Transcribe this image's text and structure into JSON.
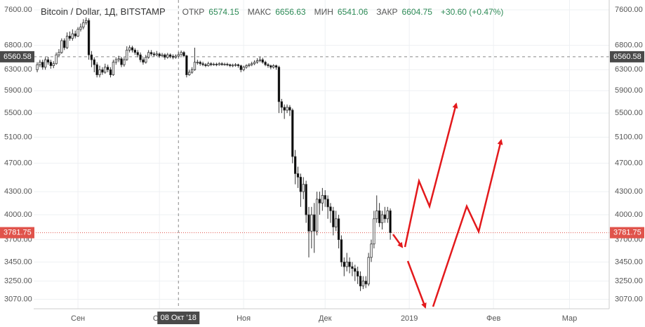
{
  "chart_data": {
    "type": "candlestick",
    "title": "Bitcoin / Dollar, 1Д, BITSTAMP",
    "ohlc_legend": {
      "labels": [
        "ОТКР",
        "МАКС",
        "МИН",
        "ЗАКР"
      ],
      "values": [
        6574.15,
        6656.63,
        6541.06,
        6604.75
      ],
      "change": "+30.60 (+0.47%)"
    },
    "log": true,
    "grid": true,
    "up_color": "#ffffff",
    "down_color": "#000000",
    "wick_color": "#333333",
    "ylim": [
      2980,
      7837
    ],
    "yticks": [
      {
        "value": 7600,
        "label": "7600.00"
      },
      {
        "value": 6800,
        "label": "6800.00"
      },
      {
        "value": 6300,
        "label": "6300.00"
      },
      {
        "value": 5900,
        "label": "5900.00"
      },
      {
        "value": 5500,
        "label": "5500.00"
      },
      {
        "value": 5100,
        "label": "5100.00"
      },
      {
        "value": 4700,
        "label": "4700.00"
      },
      {
        "value": 4300,
        "label": "4300.00"
      },
      {
        "value": 4000,
        "label": "4000.00"
      },
      {
        "value": 3700,
        "label": "3700.00"
      },
      {
        "value": 3450,
        "label": "3450.00"
      },
      {
        "value": 3250,
        "label": "3250.00"
      },
      {
        "value": 3070,
        "label": "3070.00"
      }
    ],
    "xlim": [
      -1.3,
      210.6
    ],
    "xticks": [
      {
        "value": 15,
        "label": "Сен"
      },
      {
        "value": 45,
        "label": "Окт"
      },
      {
        "value": 76,
        "label": "Ноя"
      },
      {
        "value": 106,
        "label": "Дек"
      },
      {
        "value": 137,
        "label": "2019"
      },
      {
        "value": 168,
        "label": "Фев"
      },
      {
        "value": 196,
        "label": "Мар"
      }
    ],
    "crosshair": {
      "x": 52,
      "date_label": "08 Окт '18",
      "price": 6560.58
    },
    "last_price": 3781.75,
    "last_price_color": "#e0534b",
    "open": [
      6300,
      6400,
      6450,
      6350,
      6500,
      6450,
      6380,
      6420,
      6600,
      6650,
      6900,
      6750,
      7000,
      6950,
      7050,
      7000,
      7150,
      7200,
      7300,
      7350,
      6600,
      6500,
      6400,
      6200,
      6300,
      6250,
      6350,
      6300,
      6200,
      6450,
      6500,
      6520,
      6400,
      6500,
      6700,
      6750,
      6700,
      6650,
      6600,
      6500,
      6450,
      6550,
      6650,
      6620,
      6600,
      6620,
      6580,
      6600,
      6550,
      6600,
      6570,
      6550,
      6574.15,
      6604.75,
      6650,
      6580,
      6200,
      6250,
      6300,
      6450,
      6450,
      6420,
      6400,
      6380,
      6420,
      6400,
      6410,
      6400,
      6420,
      6400,
      6410,
      6400,
      6380,
      6390,
      6400,
      6380,
      6300,
      6350,
      6380,
      6400,
      6420,
      6450,
      6480,
      6500,
      6450,
      6400,
      6380,
      6350,
      6380,
      6350,
      5700,
      5600,
      5550,
      5600,
      5550,
      4800,
      4550,
      4500,
      4300,
      4400,
      4000,
      3800,
      4000,
      3800,
      4200,
      4150,
      4250,
      4200,
      4100,
      4050,
      3850,
      3950,
      3700,
      3450,
      3400,
      3450,
      3400,
      3380,
      3350,
      3300,
      3200,
      3250,
      3220,
      3500,
      3650,
      3950,
      4050,
      3900,
      4000,
      3950,
      4050
    ],
    "high": [
      6450,
      6500,
      6500,
      6550,
      6560,
      6500,
      6470,
      6650,
      6720,
      6950,
      6950,
      7080,
      7100,
      7150,
      7120,
      7200,
      7280,
      7380,
      7420,
      7400,
      6680,
      6550,
      6450,
      6380,
      6350,
      6420,
      6400,
      6350,
      6500,
      6550,
      6580,
      6560,
      6550,
      6780,
      6800,
      6790,
      6740,
      6700,
      6650,
      6550,
      6600,
      6700,
      6700,
      6660,
      6680,
      6650,
      6640,
      6630,
      6640,
      6630,
      6610,
      6610,
      6656.63,
      6690,
      6680,
      6600,
      6300,
      6350,
      6750,
      6500,
      6480,
      6460,
      6430,
      6460,
      6450,
      6440,
      6440,
      6450,
      6450,
      6440,
      6440,
      6420,
      6420,
      6430,
      6420,
      6400,
      6380,
      6410,
      6430,
      6460,
      6490,
      6530,
      6560,
      6540,
      6480,
      6430,
      6400,
      6410,
      6400,
      6380,
      5750,
      5650,
      5650,
      5640,
      5580,
      4900,
      4650,
      4550,
      4500,
      4450,
      4100,
      4100,
      4150,
      4300,
      4300,
      4350,
      4320,
      4250,
      4150,
      4100,
      4050,
      4000,
      3750,
      3500,
      3550,
      3500,
      3450,
      3420,
      3400,
      3350,
      3300,
      3300,
      3550,
      3700,
      4050,
      4250,
      4150,
      4050,
      4100,
      4100,
      4080
    ],
    "low": [
      6250,
      6350,
      6300,
      6300,
      6400,
      6320,
      6330,
      6400,
      6550,
      6620,
      6700,
      6720,
      6900,
      6900,
      6950,
      6980,
      7100,
      7150,
      7250,
      6500,
      6350,
      6250,
      6150,
      6150,
      6200,
      6220,
      6250,
      6150,
      6180,
      6400,
      6450,
      6350,
      6360,
      6480,
      6650,
      6650,
      6600,
      6550,
      6450,
      6400,
      6420,
      6520,
      6580,
      6560,
      6570,
      6540,
      6550,
      6500,
      6520,
      6530,
      6510,
      6520,
      6541.06,
      6580,
      6550,
      6150,
      6180,
      6220,
      6280,
      6400,
      6380,
      6370,
      6350,
      6360,
      6370,
      6380,
      6370,
      6380,
      6380,
      6380,
      6370,
      6350,
      6350,
      6360,
      6340,
      6250,
      6270,
      6320,
      6350,
      6370,
      6390,
      6420,
      6450,
      6420,
      6370,
      6340,
      6310,
      6320,
      6300,
      5500,
      5500,
      5400,
      5500,
      5450,
      4700,
      4400,
      4350,
      4100,
      4200,
      3900,
      3500,
      3600,
      3550,
      3750,
      4000,
      4050,
      4100,
      3950,
      3900,
      3750,
      3800,
      3600,
      3400,
      3300,
      3350,
      3330,
      3300,
      3250,
      3220,
      3150,
      3170,
      3180,
      3200,
      3450,
      3600,
      3900,
      3850,
      3820,
      3900,
      3900,
      3700
    ],
    "close": [
      6400,
      6450,
      6350,
      6500,
      6450,
      6380,
      6420,
      6600,
      6650,
      6900,
      6750,
      7000,
      6950,
      7050,
      7000,
      7150,
      7200,
      7300,
      7350,
      6600,
      6500,
      6400,
      6200,
      6300,
      6250,
      6350,
      6300,
      6200,
      6450,
      6500,
      6520,
      6400,
      6500,
      6700,
      6750,
      6700,
      6650,
      6600,
      6500,
      6450,
      6550,
      6650,
      6620,
      6600,
      6620,
      6580,
      6600,
      6550,
      6600,
      6570,
      6550,
      6574.15,
      6604.75,
      6650,
      6580,
      6200,
      6250,
      6300,
      6450,
      6450,
      6420,
      6400,
      6380,
      6420,
      6400,
      6410,
      6400,
      6420,
      6400,
      6410,
      6400,
      6380,
      6390,
      6400,
      6380,
      6300,
      6350,
      6380,
      6400,
      6420,
      6450,
      6480,
      6500,
      6450,
      6400,
      6380,
      6350,
      6380,
      6350,
      5700,
      5600,
      5550,
      5600,
      5550,
      4800,
      4550,
      4500,
      4300,
      4400,
      4000,
      3800,
      4000,
      3800,
      4200,
      4150,
      4250,
      4200,
      4100,
      4050,
      3850,
      3950,
      3700,
      3450,
      3400,
      3450,
      3400,
      3380,
      3350,
      3300,
      3200,
      3250,
      3220,
      3500,
      3650,
      3950,
      4050,
      3900,
      4000,
      3950,
      4050,
      3781.75
    ]
  }
}
